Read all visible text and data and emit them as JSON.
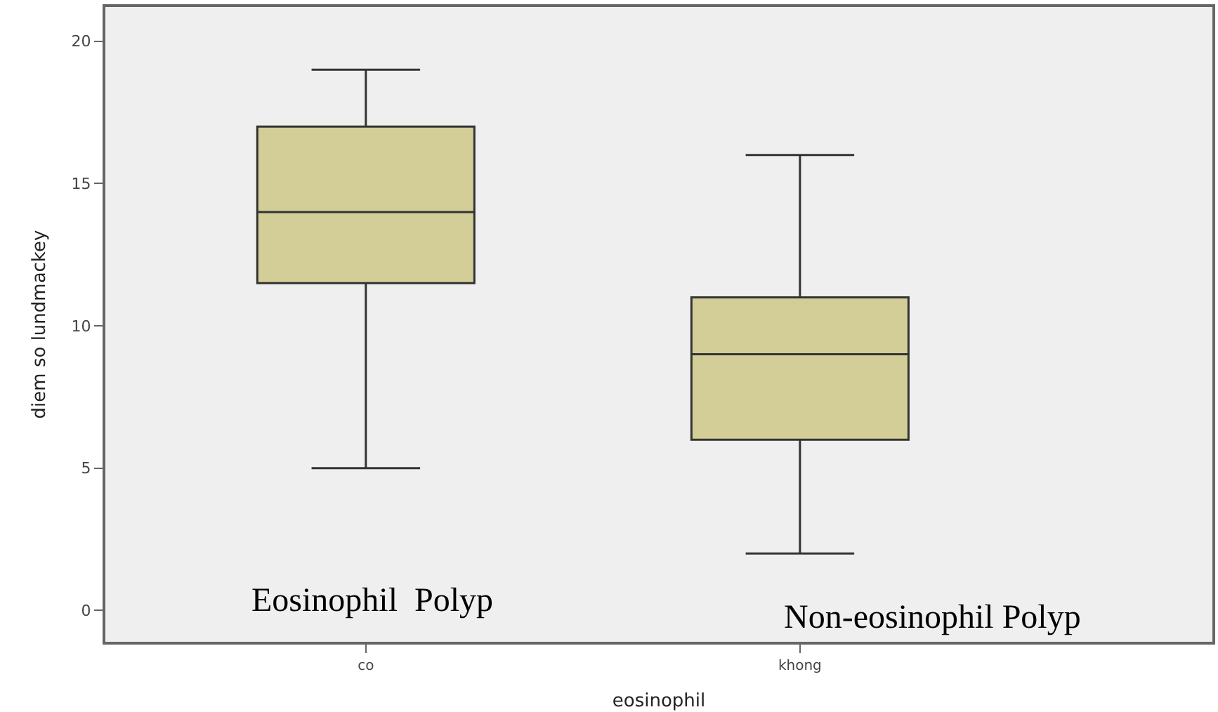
{
  "chart_data": {
    "type": "box",
    "xlabel": "eosinophil",
    "ylabel": "diem so lundmackey",
    "categories": [
      "co",
      "khong"
    ],
    "boxes": [
      {
        "low": 5,
        "q1": 11.5,
        "median": 14,
        "q3": 17,
        "high": 19
      },
      {
        "low": 2,
        "q1": 6,
        "median": 9,
        "q3": 11,
        "high": 16
      }
    ],
    "color": "#d3ce97",
    "ylim": [
      -1.1,
      21.2
    ],
    "yticks": [
      0,
      5,
      10,
      15,
      20
    ],
    "grid": false,
    "annotations": [
      "Eosinophil  Polyp",
      "Non-eosinophil Polyp"
    ]
  }
}
